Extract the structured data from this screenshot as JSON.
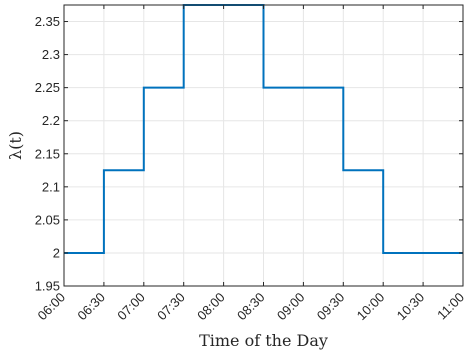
{
  "chart_data": {
    "type": "line",
    "step": true,
    "xlabel": "Time of the Day",
    "ylabel": "λ(t)",
    "xlim": [
      "06:00",
      "11:00"
    ],
    "ylim": [
      1.95,
      2.375
    ],
    "grid": true,
    "x_tick_labels": [
      "06:00",
      "06:30",
      "07:00",
      "07:30",
      "08:00",
      "08:30",
      "09:00",
      "09:30",
      "10:00",
      "10:30",
      "11:00"
    ],
    "y_tick_labels": [
      "1.95",
      "2",
      "2.05",
      "2.1",
      "2.15",
      "2.2",
      "2.25",
      "2.3",
      "2.35"
    ],
    "series": [
      {
        "color": "#0072BD",
        "x": [
          "06:00",
          "06:30",
          "06:30",
          "07:00",
          "07:00",
          "07:30",
          "07:30",
          "08:30",
          "08:30",
          "09:30",
          "09:30",
          "10:00",
          "10:00",
          "11:00"
        ],
        "y": [
          2.0,
          2.0,
          2.125,
          2.125,
          2.25,
          2.25,
          2.375,
          2.375,
          2.25,
          2.25,
          2.125,
          2.125,
          2.0,
          2.0
        ]
      }
    ]
  }
}
